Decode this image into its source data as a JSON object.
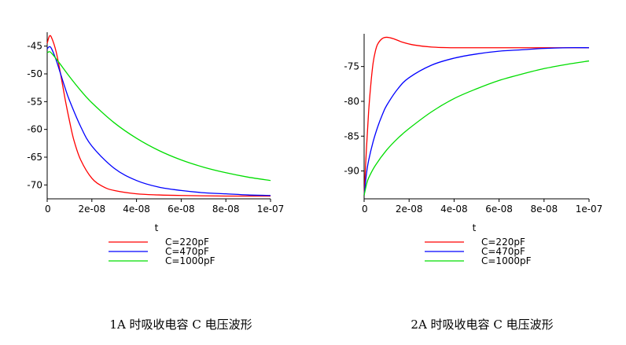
{
  "chart_data": [
    {
      "type": "line",
      "xlabel": "t",
      "ylabel": "",
      "caption": "1A 时吸收电容 C 电压波形",
      "xlim": [
        0,
        1e-07
      ],
      "ylim": [
        -72.5,
        -42.5
      ],
      "xticks": [
        {
          "value": 0,
          "label": "0"
        },
        {
          "value": 2e-08,
          "label": "2e-08"
        },
        {
          "value": 4e-08,
          "label": "4e-08"
        },
        {
          "value": 6e-08,
          "label": "6e-08"
        },
        {
          "value": 8e-08,
          "label": "8e-08"
        },
        {
          "value": 1e-07,
          "label": "1e-07"
        }
      ],
      "yticks": [
        {
          "value": -45,
          "label": "-45"
        },
        {
          "value": -50,
          "label": "-50"
        },
        {
          "value": -55,
          "label": "-55"
        },
        {
          "value": -60,
          "label": "-60"
        },
        {
          "value": -65,
          "label": "-65"
        },
        {
          "value": -70,
          "label": "-70"
        }
      ],
      "legend": [
        "C=220pF",
        "C=470pF",
        "C=1000pF"
      ],
      "series": [
        {
          "name": "C=220pF",
          "color": "#ff0000",
          "x": [
            0,
            1e-09,
            2e-09,
            4e-09,
            6e-09,
            8e-09,
            1e-08,
            1.2e-08,
            1.5e-08,
            2e-08,
            2.5e-08,
            3e-08,
            4e-08,
            5e-08,
            6e-08,
            8e-08,
            1e-07
          ],
          "y": [
            -44.5,
            -43.2,
            -43.5,
            -46.0,
            -50.0,
            -54.5,
            -58.5,
            -62.0,
            -65.5,
            -68.8,
            -70.3,
            -71.0,
            -71.6,
            -71.8,
            -71.9,
            -72.0,
            -72.0
          ]
        },
        {
          "name": "C=470pF",
          "color": "#0000ff",
          "x": [
            0,
            1e-09,
            2e-09,
            4e-09,
            6e-09,
            8e-09,
            1e-08,
            1.5e-08,
            2e-08,
            3e-08,
            4e-08,
            5e-08,
            6e-08,
            7e-08,
            8e-08,
            9e-08,
            1e-07
          ],
          "y": [
            -45.5,
            -45.1,
            -45.5,
            -47.5,
            -50.0,
            -52.5,
            -54.8,
            -59.5,
            -63.0,
            -67.0,
            -69.2,
            -70.4,
            -71.0,
            -71.4,
            -71.6,
            -71.8,
            -71.9
          ]
        },
        {
          "name": "C=1000pF",
          "color": "#00dd00",
          "x": [
            0,
            1e-09,
            2e-09,
            5e-09,
            1e-08,
            1.5e-08,
            2e-08,
            3e-08,
            4e-08,
            5e-08,
            6e-08,
            7e-08,
            8e-08,
            9e-08,
            1e-07
          ],
          "y": [
            -46.2,
            -46.0,
            -46.3,
            -47.8,
            -50.5,
            -53.0,
            -55.2,
            -58.8,
            -61.6,
            -63.8,
            -65.5,
            -66.8,
            -67.8,
            -68.6,
            -69.2
          ]
        }
      ]
    },
    {
      "type": "line",
      "xlabel": "t",
      "ylabel": "",
      "caption": "2A 时吸收电容 C 电压波形",
      "xlim": [
        0,
        1e-07
      ],
      "ylim": [
        -94.0,
        -70.3
      ],
      "xticks": [
        {
          "value": 0,
          "label": "0"
        },
        {
          "value": 2e-08,
          "label": "2e-08"
        },
        {
          "value": 4e-08,
          "label": "4e-08"
        },
        {
          "value": 6e-08,
          "label": "6e-08"
        },
        {
          "value": 8e-08,
          "label": "8e-08"
        },
        {
          "value": 1e-07,
          "label": "1e-07"
        }
      ],
      "yticks": [
        {
          "value": -75,
          "label": "-75"
        },
        {
          "value": -80,
          "label": "-80"
        },
        {
          "value": -85,
          "label": "-85"
        },
        {
          "value": -90,
          "label": "-90"
        }
      ],
      "legend": [
        "C=220pF",
        "C=470pF",
        "C=1000pF"
      ],
      "series": [
        {
          "name": "C=220pF",
          "color": "#ff0000",
          "x": [
            0,
            1e-09,
            2e-09,
            3e-09,
            4e-09,
            5e-09,
            6e-09,
            8e-09,
            1e-08,
            1.3e-08,
            1.7e-08,
            2.2e-08,
            3e-08,
            4e-08,
            6e-08,
            8e-08,
            1e-07
          ],
          "y": [
            -93.5,
            -87.0,
            -81.5,
            -77.5,
            -74.5,
            -72.8,
            -71.8,
            -71.0,
            -70.8,
            -71.0,
            -71.5,
            -71.9,
            -72.2,
            -72.3,
            -72.3,
            -72.3,
            -72.3
          ]
        },
        {
          "name": "C=470pF",
          "color": "#0000ff",
          "x": [
            0,
            1e-09,
            2e-09,
            4e-09,
            6e-09,
            8e-09,
            1e-08,
            1.5e-08,
            2e-08,
            3e-08,
            4e-08,
            5e-08,
            6e-08,
            7e-08,
            8e-08,
            9e-08,
            1e-07
          ],
          "y": [
            -93.5,
            -90.5,
            -88.5,
            -85.8,
            -83.7,
            -82.0,
            -80.6,
            -78.2,
            -76.6,
            -74.8,
            -73.8,
            -73.2,
            -72.8,
            -72.6,
            -72.4,
            -72.3,
            -72.3
          ]
        },
        {
          "name": "C=1000pF",
          "color": "#00dd00",
          "x": [
            0,
            1e-09,
            2e-09,
            5e-09,
            1e-08,
            1.5e-08,
            2e-08,
            3e-08,
            4e-08,
            5e-08,
            6e-08,
            7e-08,
            8e-08,
            9e-08,
            1e-07
          ],
          "y": [
            -93.5,
            -92.0,
            -91.0,
            -89.2,
            -87.0,
            -85.3,
            -83.9,
            -81.5,
            -79.6,
            -78.2,
            -77.0,
            -76.1,
            -75.3,
            -74.7,
            -74.2
          ]
        }
      ]
    }
  ]
}
